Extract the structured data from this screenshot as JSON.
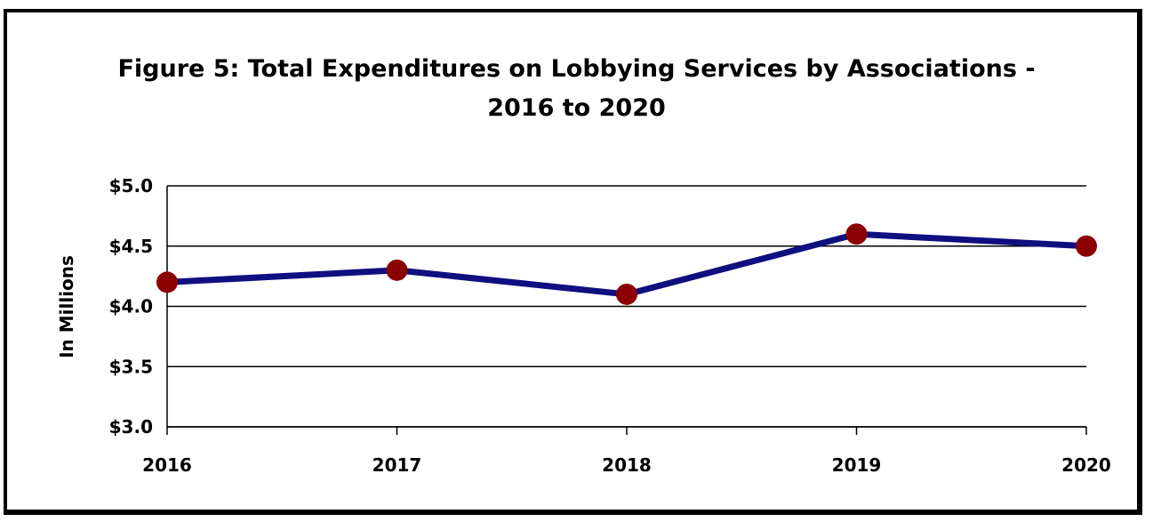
{
  "chart_data": {
    "type": "line",
    "title_line1": "Figure 5:  Total Expenditures on Lobbying Services by Associations -",
    "title_line2": "2016 to 2020",
    "xlabel": "",
    "ylabel": "In Millions",
    "categories": [
      "2016",
      "2017",
      "2018",
      "2019",
      "2020"
    ],
    "series": [
      {
        "values": [
          4.2,
          4.3,
          4.1,
          4.6,
          4.5
        ]
      }
    ],
    "ylim": [
      3.0,
      5.0
    ],
    "yticks": [
      {
        "value": 5.0,
        "label": "$5.0"
      },
      {
        "value": 4.5,
        "label": "$4.5"
      },
      {
        "value": 4.0,
        "label": "$4.0"
      },
      {
        "value": 3.5,
        "label": "$3.5"
      },
      {
        "value": 3.0,
        "label": "$3.0"
      }
    ],
    "grid": true,
    "legend": "none",
    "colors": {
      "line": "#0f0f80",
      "marker": "#8b0000",
      "grid": "#000000"
    }
  }
}
